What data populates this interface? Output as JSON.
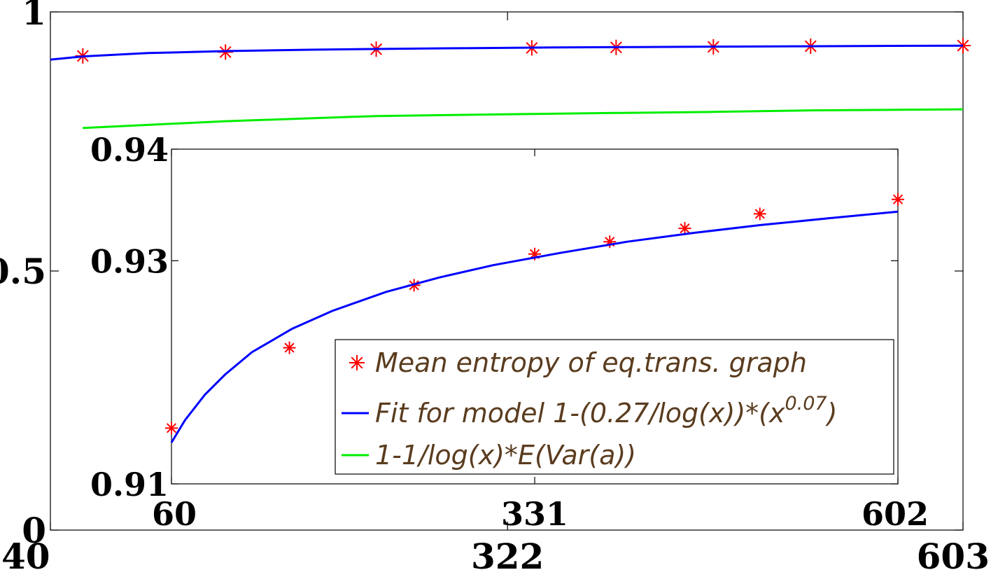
{
  "chart_data": [
    {
      "type": "line",
      "title": "",
      "xlabel": "",
      "ylabel": "",
      "xlim": [
        40,
        603
      ],
      "ylim": [
        0,
        1
      ],
      "xticks": [
        "40",
        "322",
        "603"
      ],
      "yticks": [
        "0",
        "0.5",
        "1"
      ],
      "grid": false,
      "series": [
        {
          "name": "Mean entropy of eq.trans. graph",
          "style": "markers",
          "marker": "asterisk",
          "color": "#ff0000",
          "x": [
            60,
            148,
            241,
            337,
            389,
            449,
            509,
            603
          ],
          "y": [
            0.915,
            0.9225,
            0.928,
            0.9305,
            0.9315,
            0.9325,
            0.9338,
            0.935
          ]
        },
        {
          "name": "Fit for model 1-(0.27/log(x))*(x^0.07)",
          "style": "line",
          "color": "#0000ff",
          "model": "1-(0.27/log(x))*(x^0.07)",
          "x": [
            40,
            60,
            100,
            150,
            200,
            250,
            300,
            350,
            400,
            450,
            500,
            550,
            603
          ],
          "y": [
            0.908,
            0.914,
            0.9205,
            0.9245,
            0.927,
            0.9288,
            0.9302,
            0.9313,
            0.9322,
            0.933,
            0.9337,
            0.9343,
            0.9348
          ]
        },
        {
          "name": "1-1/log(x)*E(Var(a))",
          "style": "line",
          "color": "#00ee00",
          "x": [
            60,
            148,
            241,
            337,
            389,
            449,
            509,
            603
          ],
          "y": [
            0.776,
            0.789,
            0.799,
            0.803,
            0.805,
            0.807,
            0.81,
            0.812
          ]
        }
      ]
    },
    {
      "type": "line",
      "title": "",
      "inset": true,
      "xlabel": "",
      "ylabel": "",
      "xlim": [
        60,
        602
      ],
      "ylim": [
        0.91,
        0.94
      ],
      "xticks": [
        "60",
        "331",
        "602"
      ],
      "yticks": [
        "0.91",
        "0.93",
        "0.94"
      ],
      "grid": false,
      "legend": {
        "location": "lower-right",
        "entries": [
          {
            "label": "Mean entropy of eq.trans. graph",
            "color": "#ff0000",
            "marker": "asterisk"
          },
          {
            "label": "Fit for model 1-(0.27/log(x))*(x",
            "sup": "0.07",
            "suffix": ")",
            "color": "#0000ff",
            "marker": "line"
          },
          {
            "label": "1-1/log(x)*E(Var(a))",
            "color": "#00ee00",
            "marker": "line"
          }
        ]
      },
      "series": [
        {
          "name": "Mean entropy of eq.trans. graph",
          "style": "markers",
          "marker": "asterisk",
          "color": "#ff0000",
          "x": [
            60,
            148,
            241,
            331,
            387,
            443,
            499,
            602
          ],
          "y": [
            0.915,
            0.9222,
            0.9278,
            0.9306,
            0.9317,
            0.9329,
            0.9342,
            0.9355
          ]
        },
        {
          "name": "Fit for model 1-(0.27/log(x))*(x^0.07)",
          "style": "line",
          "color": "#0000ff",
          "x": [
            60,
            70,
            85,
            100,
            120,
            150,
            180,
            220,
            260,
            300,
            350,
            400,
            450,
            500,
            550,
            602
          ],
          "y": [
            0.9137,
            0.9157,
            0.918,
            0.9198,
            0.9218,
            0.9239,
            0.9255,
            0.9272,
            0.9285,
            0.9296,
            0.9307,
            0.9317,
            0.9325,
            0.9332,
            0.9338,
            0.9344
          ]
        }
      ]
    }
  ]
}
